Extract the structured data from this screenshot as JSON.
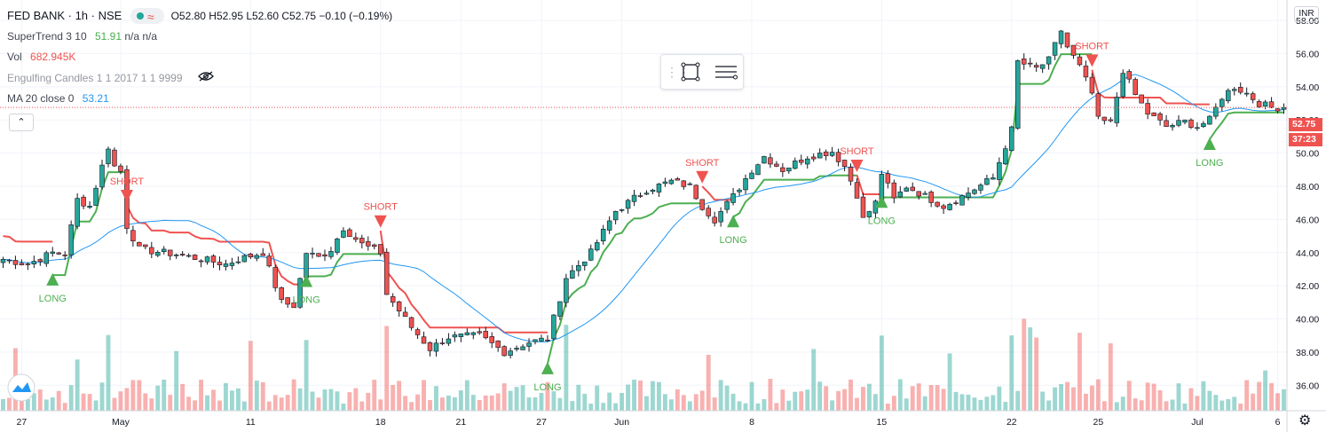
{
  "legend": {
    "symbol": "FED BANK",
    "interval": "1h",
    "exchange": "NSE",
    "ohlc": "O52.80 H52.95 L52.60 C52.75 −0.10 (−0.19%)",
    "supertrend_label": "SuperTrend 3 10",
    "supertrend_value": "51.91",
    "supertrend_extra": "n/a n/a",
    "vol_label": "Vol",
    "vol_value": "682.945K",
    "engulfing_label": "Engulfing Candles 1 1 2017 1 1 9999",
    "ma_label": "MA 20 close 0",
    "ma_value": "53.21"
  },
  "currency": "INR",
  "last_price": "52.75",
  "countdown": "37:23",
  "colors": {
    "up": "#26a69a",
    "down": "#ef5350",
    "supertrend_up": "#4caf50",
    "supertrend_down": "#ef5350",
    "ma": "#2196f3",
    "grid": "#f0f3fa"
  },
  "toolbar": {
    "rect_icon": "rectangle-icon",
    "settings_icon": "lines-settings-icon"
  },
  "chart_data": {
    "type": "candlestick",
    "y_ticks": [
      "36.00",
      "38.00",
      "40.00",
      "42.00",
      "44.00",
      "46.00",
      "48.00",
      "50.00",
      "52.00",
      "54.00",
      "56.00",
      "58.00"
    ],
    "ylim": [
      35,
      59.5
    ],
    "x_ticks": [
      {
        "bar": 3,
        "label": "27"
      },
      {
        "bar": 19,
        "label": "May"
      },
      {
        "bar": 40,
        "label": "11"
      },
      {
        "bar": 61,
        "label": "18"
      },
      {
        "bar": 74,
        "label": "21"
      },
      {
        "bar": 87,
        "label": "27"
      },
      {
        "bar": 100,
        "label": "Jun"
      },
      {
        "bar": 121,
        "label": "8"
      },
      {
        "bar": 142,
        "label": "15"
      },
      {
        "bar": 163,
        "label": "22"
      },
      {
        "bar": 177,
        "label": "25"
      },
      {
        "bar": 193,
        "label": "Jul"
      },
      {
        "bar": 206,
        "label": "6"
      }
    ],
    "close_anchors": [
      [
        0,
        43.6
      ],
      [
        4,
        43.3
      ],
      [
        8,
        44.0
      ],
      [
        10,
        43.9
      ],
      [
        12,
        47.2
      ],
      [
        14,
        46.8
      ],
      [
        17,
        50.4
      ],
      [
        18,
        49.2
      ],
      [
        19,
        48.9
      ],
      [
        20,
        45.6
      ],
      [
        22,
        44.2
      ],
      [
        28,
        43.9
      ],
      [
        32,
        43.6
      ],
      [
        36,
        43.3
      ],
      [
        38,
        43.6
      ],
      [
        42,
        44.0
      ],
      [
        45,
        41.0
      ],
      [
        47,
        40.8
      ],
      [
        49,
        44.0
      ],
      [
        51,
        43.7
      ],
      [
        53,
        44.2
      ],
      [
        55,
        45.5
      ],
      [
        58,
        44.5
      ],
      [
        61,
        44.0
      ],
      [
        62,
        41.5
      ],
      [
        66,
        39.5
      ],
      [
        69,
        38.2
      ],
      [
        72,
        38.9
      ],
      [
        77,
        39.0
      ],
      [
        81,
        38.0
      ],
      [
        85,
        38.6
      ],
      [
        88,
        38.8
      ],
      [
        91,
        42.5
      ],
      [
        95,
        44.0
      ],
      [
        99,
        46.5
      ],
      [
        104,
        47.8
      ],
      [
        108,
        48.3
      ],
      [
        111,
        48.0
      ],
      [
        113,
        46.8
      ],
      [
        115,
        46.0
      ],
      [
        118,
        47.4
      ],
      [
        121,
        49.0
      ],
      [
        123,
        49.8
      ],
      [
        126,
        49.0
      ],
      [
        130,
        49.8
      ],
      [
        134,
        50.1
      ],
      [
        136,
        49.2
      ],
      [
        138,
        47.5
      ],
      [
        139,
        46.0
      ],
      [
        141,
        47.0
      ],
      [
        142,
        48.8
      ],
      [
        144,
        47.2
      ],
      [
        146,
        48.0
      ],
      [
        149,
        47.4
      ],
      [
        152,
        46.8
      ],
      [
        155,
        47.4
      ],
      [
        160,
        48.5
      ],
      [
        163,
        51.4
      ],
      [
        164,
        55.5
      ],
      [
        167,
        55.1
      ],
      [
        169,
        55.6
      ],
      [
        171,
        57.4
      ],
      [
        172,
        56.4
      ],
      [
        174,
        55.2
      ],
      [
        176,
        53.6
      ],
      [
        177,
        52.0
      ],
      [
        179,
        51.8
      ],
      [
        181,
        55.0
      ],
      [
        183,
        53.5
      ],
      [
        185,
        52.4
      ],
      [
        188,
        51.6
      ],
      [
        191,
        51.9
      ],
      [
        193,
        51.6
      ],
      [
        195,
        52.0
      ],
      [
        197,
        53.4
      ],
      [
        199,
        54.0
      ],
      [
        201,
        53.6
      ],
      [
        203,
        53.0
      ],
      [
        205,
        52.75
      ]
    ],
    "volume_scale_max": 100,
    "supertrend_long_bars": [
      8,
      49,
      88,
      118,
      142,
      195
    ],
    "supertrend_short_bars": [
      20,
      61,
      113,
      138,
      176
    ],
    "labels": {
      "long": "LONG",
      "short": "SHORT"
    }
  }
}
